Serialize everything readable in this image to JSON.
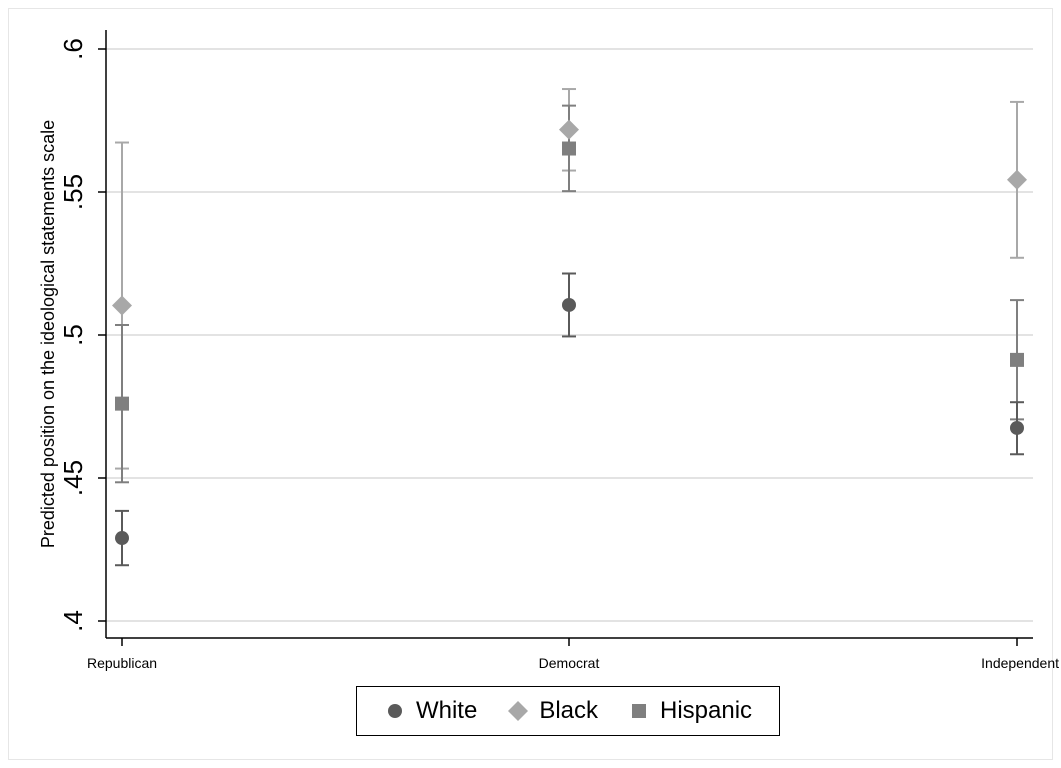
{
  "chart_data": {
    "type": "scatter",
    "title": "",
    "xlabel": "",
    "ylabel": "Predicted position on the ideological statements scale",
    "categories": [
      "Republican",
      "Democrat",
      "Independent"
    ],
    "ylim": [
      0.4,
      0.6
    ],
    "yticks": [
      0.4,
      0.45,
      0.5,
      0.55,
      0.6
    ],
    "ytick_labels": [
      ".4",
      ".45",
      ".5",
      ".55",
      ".6"
    ],
    "grid": true,
    "legend_position": "bottom",
    "series": [
      {
        "name": "White",
        "marker": "circle",
        "color": "#5a5a5a",
        "values": [
          0.429,
          0.5105,
          0.4675
        ],
        "ci_low": [
          0.4195,
          0.4995,
          0.4583
        ],
        "ci_high": [
          0.4385,
          0.5215,
          0.4765
        ]
      },
      {
        "name": "Black",
        "marker": "diamond",
        "color": "#a8a8a8",
        "values": [
          0.5103,
          0.5718,
          0.5543
        ],
        "ci_low": [
          0.4533,
          0.5575,
          0.527
        ],
        "ci_high": [
          0.5673,
          0.586,
          0.5815
        ]
      },
      {
        "name": "Hispanic",
        "marker": "square",
        "color": "#7f7f7f",
        "values": [
          0.476,
          0.5652,
          0.4913
        ],
        "ci_low": [
          0.4485,
          0.5503,
          0.4705
        ],
        "ci_high": [
          0.5035,
          0.5802,
          0.5122
        ]
      }
    ]
  }
}
